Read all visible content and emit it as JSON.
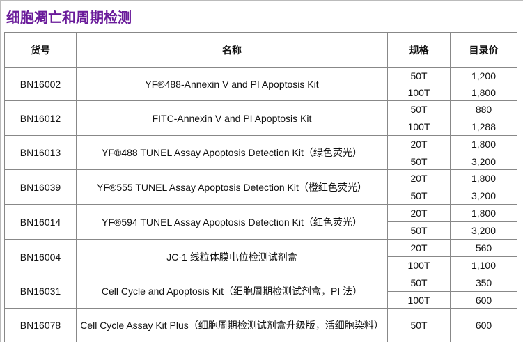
{
  "header": {
    "title": "细胞凋亡和周期检测"
  },
  "table": {
    "headers": [
      "货号",
      "名称",
      "规格",
      "目录价"
    ],
    "rows": [
      {
        "id": "BN16002",
        "name": "YF®488-Annexin V and PI Apoptosis Kit",
        "specs": [
          {
            "size": "50T",
            "price": "1,200"
          },
          {
            "size": "100T",
            "price": "1,800"
          }
        ]
      },
      {
        "id": "BN16012",
        "name": "FITC-Annexin V and PI Apoptosis Kit",
        "specs": [
          {
            "size": "50T",
            "price": "880"
          },
          {
            "size": "100T",
            "price": "1,288"
          }
        ]
      },
      {
        "id": "BN16013",
        "name": "YF®488 TUNEL Assay Apoptosis Detection Kit（绿色荧光）",
        "specs": [
          {
            "size": "20T",
            "price": "1,800"
          },
          {
            "size": "50T",
            "price": "3,200"
          }
        ]
      },
      {
        "id": "BN16039",
        "name": "YF®555 TUNEL Assay Apoptosis Detection Kit（橙红色荧光）",
        "specs": [
          {
            "size": "20T",
            "price": "1,800"
          },
          {
            "size": "50T",
            "price": "3,200"
          }
        ]
      },
      {
        "id": "BN16014",
        "name": "YF®594 TUNEL Assay Apoptosis Detection Kit（红色荧光）",
        "specs": [
          {
            "size": "20T",
            "price": "1,800"
          },
          {
            "size": "50T",
            "price": "3,200"
          }
        ]
      },
      {
        "id": "BN16004",
        "name": "JC-1 线粒体膜电位检测试剂盒",
        "specs": [
          {
            "size": "20T",
            "price": "560"
          },
          {
            "size": "100T",
            "price": "1,100"
          }
        ]
      },
      {
        "id": "BN16031",
        "name": "Cell Cycle and Apoptosis Kit（细胞周期检测试剂盒，PI 法）",
        "specs": [
          {
            "size": "50T",
            "price": "350"
          },
          {
            "size": "100T",
            "price": "600"
          }
        ]
      },
      {
        "id": "BN16078",
        "name": "Cell Cycle Assay Kit Plus（细胞周期检测试剂盒升级版，活细胞染料）",
        "specs": [
          {
            "size": "50T",
            "price": "600"
          }
        ]
      }
    ]
  }
}
